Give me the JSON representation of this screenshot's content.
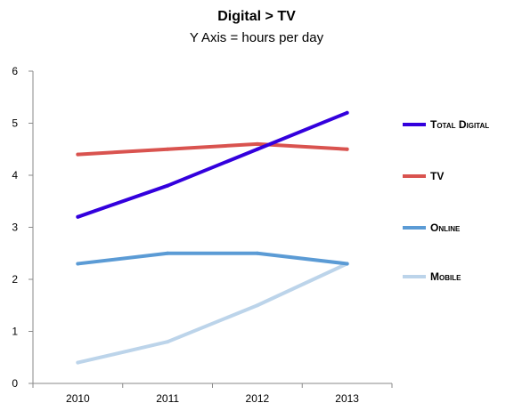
{
  "chart_data": {
    "type": "line",
    "title": "Digital > TV",
    "subtitle": "Y Axis = hours per day",
    "categories": [
      "2010",
      "2011",
      "2012",
      "2013"
    ],
    "ylim": [
      0,
      6
    ],
    "yticks": [
      0,
      1,
      2,
      3,
      4,
      5,
      6
    ],
    "grid": false,
    "legend_position": "right",
    "series": [
      {
        "name": "Total Digital",
        "color": "#3300dd",
        "values": [
          3.2,
          3.8,
          4.5,
          5.2
        ]
      },
      {
        "name": "TV",
        "color": "#d9534f",
        "values": [
          4.4,
          4.5,
          4.6,
          4.5
        ]
      },
      {
        "name": "Online",
        "color": "#5b9bd5",
        "values": [
          2.3,
          2.5,
          2.5,
          2.3
        ]
      },
      {
        "name": "Mobile",
        "color": "#bcd4ea",
        "values": [
          0.4,
          0.8,
          1.5,
          2.3
        ]
      }
    ]
  }
}
